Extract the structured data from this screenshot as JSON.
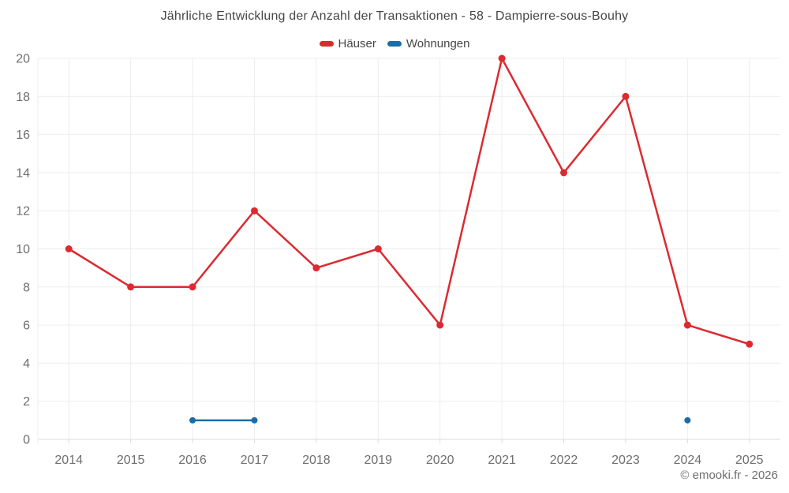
{
  "title": "Jährliche Entwicklung der Anzahl der Transaktionen - 58 - Dampierre-sous-Bouhy",
  "footer": "© emooki.fr - 2026",
  "legend": [
    {
      "label": "Häuser",
      "color": "#db2b31"
    },
    {
      "label": "Wohnungen",
      "color": "#1a6da8"
    }
  ],
  "colors": {
    "grid": "#ededed",
    "axis_line": "#dcdcdc",
    "tick_label": "#6e6e6e",
    "title_text": "#464646"
  },
  "chart_data": {
    "type": "line",
    "title": "Jährliche Entwicklung der Anzahl der Transaktionen - 58 - Dampierre-sous-Bouhy",
    "categories": [
      "2014",
      "2015",
      "2016",
      "2017",
      "2018",
      "2019",
      "2020",
      "2021",
      "2022",
      "2023",
      "2024",
      "2025"
    ],
    "series": [
      {
        "name": "Häuser",
        "color": "#db2b31",
        "marker_radius": 4.5,
        "values": [
          10,
          8,
          8,
          12,
          9,
          10,
          6,
          20,
          14,
          18,
          6,
          5
        ]
      },
      {
        "name": "Wohnungen",
        "color": "#1a6da8",
        "marker_radius": 4,
        "values": [
          null,
          null,
          1,
          1,
          null,
          null,
          null,
          null,
          null,
          null,
          1,
          null
        ]
      }
    ],
    "xlabel": "",
    "ylabel": "",
    "ylim": [
      0,
      20
    ],
    "yticks": [
      0,
      2,
      4,
      6,
      8,
      10,
      12,
      14,
      16,
      18,
      20
    ],
    "grid": true,
    "legend_position": "top"
  }
}
